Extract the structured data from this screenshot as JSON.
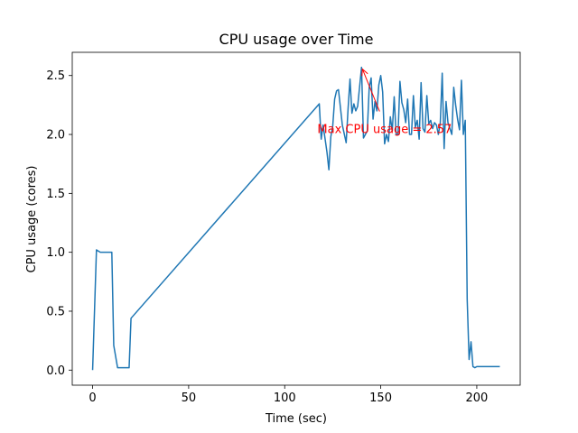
{
  "chart_data": {
    "type": "line",
    "title": "CPU usage over Time",
    "xlabel": "Time (sec)",
    "ylabel": "CPU usage (cores)",
    "xlim": [
      -10.6,
      222.6
    ],
    "ylim": [
      -0.128,
      2.697
    ],
    "xticks": [
      0,
      50,
      100,
      150,
      200
    ],
    "xtick_labels": [
      "0",
      "50",
      "100",
      "150",
      "200"
    ],
    "yticks": [
      0.0,
      0.5,
      1.0,
      1.5,
      2.0,
      2.5
    ],
    "ytick_labels": [
      "0.0",
      "0.5",
      "1.0",
      "1.5",
      "2.0",
      "2.5"
    ],
    "grid": false,
    "line_color": "#1f77b4",
    "series": [
      {
        "x": [
          0,
          2,
          4,
          6,
          8,
          10,
          11,
          13,
          15,
          17,
          19,
          20,
          118,
          119,
          120,
          122,
          123,
          124,
          125,
          126,
          127,
          128,
          130,
          132,
          133,
          134,
          135,
          136,
          137,
          138,
          140,
          141,
          142,
          143,
          144,
          145,
          146,
          147,
          148,
          149,
          150,
          151,
          152,
          153,
          154,
          155,
          156,
          157,
          158,
          159,
          160,
          161,
          162,
          163,
          164,
          165,
          166,
          167,
          168,
          169,
          170,
          171,
          172,
          173,
          174,
          175,
          176,
          177,
          178,
          179,
          180,
          181,
          182,
          183,
          184,
          185,
          186,
          187,
          188,
          189,
          190,
          191,
          192,
          193,
          194,
          195,
          196,
          197,
          198,
          199,
          200,
          201,
          202,
          203,
          204,
          205,
          206,
          207,
          208,
          209,
          210,
          212
        ],
        "values": [
          0.0,
          1.02,
          1.0,
          1.0,
          1.0,
          1.0,
          0.21,
          0.02,
          0.02,
          0.02,
          0.02,
          0.44,
          2.26,
          1.96,
          2.08,
          1.85,
          1.7,
          1.98,
          2.07,
          2.3,
          2.37,
          2.38,
          2.08,
          1.93,
          2.22,
          2.47,
          2.18,
          2.26,
          2.2,
          2.24,
          2.57,
          1.97,
          2.0,
          2.03,
          2.4,
          2.48,
          2.13,
          2.28,
          2.2,
          2.42,
          2.5,
          2.36,
          1.92,
          2.0,
          1.94,
          2.15,
          2.03,
          2.32,
          2.0,
          2.0,
          2.45,
          2.27,
          2.21,
          2.1,
          2.3,
          2.0,
          2.0,
          2.33,
          2.06,
          2.12,
          1.96,
          2.44,
          2.05,
          2.02,
          2.33,
          2.09,
          2.12,
          2.05,
          2.1,
          2.08,
          2.0,
          2.1,
          2.52,
          1.88,
          2.28,
          2.1,
          2.05,
          2.0,
          2.4,
          2.25,
          2.13,
          2.04,
          2.46,
          2.0,
          2.12,
          0.6,
          0.09,
          0.24,
          0.03,
          0.02,
          0.03,
          0.03,
          0.03,
          0.03,
          0.03,
          0.03,
          0.03,
          0.03,
          0.03,
          0.03,
          0.03,
          0.03
        ]
      }
    ],
    "annotation": {
      "text": "Max CPU usage = 2.57",
      "point": [
        140,
        2.57
      ],
      "text_xy": [
        117,
        2.05
      ],
      "color": "#ff0000"
    }
  }
}
